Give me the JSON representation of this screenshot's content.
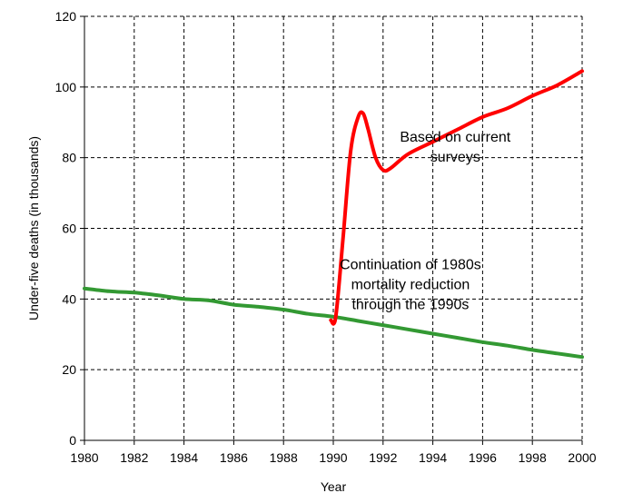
{
  "chart_data": {
    "type": "line",
    "title": "",
    "xlabel": "Year",
    "ylabel": "Under-five deaths (in thousands)",
    "xlim": [
      1980,
      2000
    ],
    "ylim": [
      0,
      120
    ],
    "x_ticks": [
      1980,
      1982,
      1984,
      1986,
      1988,
      1990,
      1992,
      1994,
      1996,
      1998,
      2000
    ],
    "y_ticks": [
      0,
      20,
      40,
      60,
      80,
      100,
      120
    ],
    "grid": true,
    "legend": "none",
    "colors": {
      "surveys": "#ff0000",
      "continuation": "#339933"
    },
    "series": [
      {
        "key": "continuation",
        "x": [
          1980,
          1981,
          1982,
          1983,
          1984,
          1985,
          1986,
          1987,
          1988,
          1989,
          1990,
          1991,
          1992,
          1993,
          1994,
          1995,
          1996,
          1997,
          1998,
          1999,
          2000
        ],
        "values": [
          43,
          42.2,
          41.8,
          41,
          40,
          39.6,
          38.4,
          37.8,
          37,
          35.8,
          35,
          33.8,
          32.6,
          31.4,
          30.2,
          29,
          27.8,
          26.8,
          25.6,
          24.6,
          23.6
        ]
      },
      {
        "key": "surveys",
        "x": [
          1989.9,
          1990.1,
          1990.4,
          1990.7,
          1991.0,
          1991.2,
          1991.4,
          1991.7,
          1992.0,
          1992.3,
          1993.0,
          1994.0,
          1995.0,
          1996.0,
          1997.0,
          1998.0,
          1999.0,
          2000.0
        ],
        "values": [
          34,
          35,
          58,
          82,
          91.5,
          92.5,
          88,
          80,
          76.5,
          77,
          81,
          84.5,
          88,
          91.5,
          94,
          97.5,
          100.5,
          104.5
        ]
      }
    ],
    "annotations": [
      {
        "key": "surveys",
        "lines": [
          "Based on current",
          "surveys"
        ],
        "anchor_x": 1994.9,
        "anchor_y": 84.5
      },
      {
        "key": "continuation",
        "lines": [
          "Continuation of 1980s",
          "mortality reduction",
          "through the 1990s"
        ],
        "anchor_x": 1993.1,
        "anchor_y": 48.5
      }
    ]
  }
}
